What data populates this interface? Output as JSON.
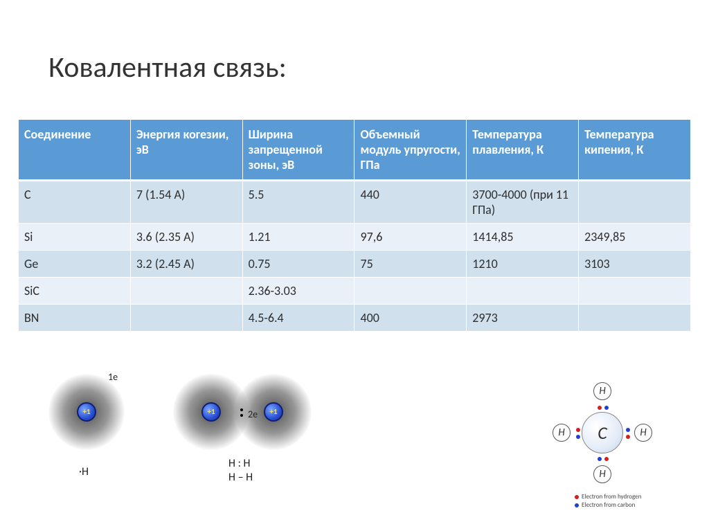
{
  "title": "Ковалентная связь:",
  "table": {
    "headers": [
      "Соединение",
      "Энергия когезии, эВ",
      "Ширина запрещенной зоны, эВ",
      "Объемный модуль упругости, ГПа",
      "Температура плавления, К",
      "Температура кипения, К"
    ],
    "rows": [
      [
        "C",
        "7 (1.54 А)",
        "5.5",
        "440",
        "3700-4000 (при 11 ГПа)",
        ""
      ],
      [
        "Si",
        "3.6 (2.35 A)",
        "1.21",
        "97,6",
        "1414,85",
        "2349,85"
      ],
      [
        "Ge",
        "3.2 (2.45 A)",
        "0.75",
        "75",
        "1210",
        "3103"
      ],
      [
        "SiC",
        "",
        "2.36-3.03",
        "",
        "",
        ""
      ],
      [
        "BN",
        "",
        "4.5-6.4",
        "400",
        "2973",
        ""
      ]
    ]
  },
  "diagram": {
    "nucleus_label": "+1",
    "single_e_label": "1e",
    "single_caption": "·H",
    "pair_e_label": "2e",
    "pair_caption1": "H : H",
    "pair_caption2": "H – H",
    "methane_center": "C",
    "methane_h": "H",
    "legend_h": "Electron from hydrogen",
    "legend_c": "Electron from carbon",
    "colors": {
      "header_bg": "#5b9bd5",
      "row_odd": "#d0e0ed",
      "row_even": "#eaf0f8",
      "electron_red": "#d02020",
      "electron_blue": "#2040d0"
    }
  }
}
